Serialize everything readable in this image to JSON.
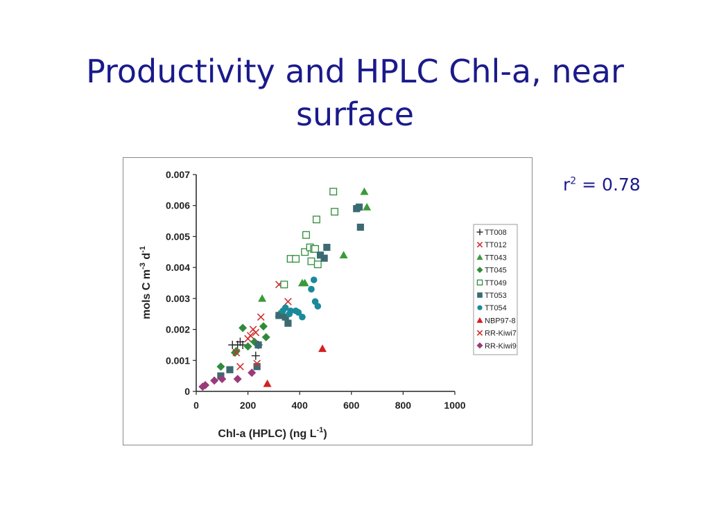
{
  "slide": {
    "title": "Productivity and HPLC Chl-a, near surface",
    "r2_prefix": "r",
    "r2_sup": "2",
    "r2_rest": " = 0.78"
  },
  "chart_data": {
    "type": "scatter",
    "title": "",
    "xlabel": "Chl-a (HPLC) (ng L",
    "xlabel_sup": "-1",
    "xlabel_end": ")",
    "ylabel": "mols C m",
    "ylabel_sup1": "-3",
    "ylabel_mid": " d",
    "ylabel_sup2": "-1",
    "xlim": [
      0,
      1000
    ],
    "ylim": [
      0,
      0.007
    ],
    "xticks": [
      0,
      200,
      400,
      600,
      800,
      1000
    ],
    "xtick_labels": [
      "0",
      "200",
      "400",
      "600",
      "800",
      "1000"
    ],
    "yticks": [
      0,
      0.001,
      0.002,
      0.003,
      0.004,
      0.005,
      0.006,
      0.007
    ],
    "ytick_labels": [
      "0",
      "0.001",
      "0.002",
      "0.003",
      "0.004",
      "0.005",
      "0.006",
      "0.007"
    ],
    "grid": false,
    "legend_position": "right",
    "series": [
      {
        "name": "TT008",
        "marker": "plus",
        "color": "#222222",
        "x": [
          140,
          160,
          170,
          180,
          230,
          240
        ],
        "y": [
          0.0015,
          0.0015,
          0.0016,
          0.0015,
          0.00115,
          0.0015
        ]
      },
      {
        "name": "TT012",
        "marker": "x",
        "color": "#d03030",
        "x": [
          200,
          210,
          220,
          230,
          250,
          320,
          355
        ],
        "y": [
          0.0017,
          0.0018,
          0.002,
          0.0019,
          0.0024,
          0.00345,
          0.0029
        ]
      },
      {
        "name": "TT043",
        "marker": "triangle",
        "color": "#3a9a3a",
        "x": [
          255,
          320,
          410,
          420,
          570,
          650,
          660
        ],
        "y": [
          0.003,
          0.0025,
          0.0035,
          0.0035,
          0.0044,
          0.00645,
          0.00595
        ]
      },
      {
        "name": "TT045",
        "marker": "diamond",
        "color": "#2e8b3a",
        "x": [
          95,
          150,
          155,
          180,
          200,
          225,
          260,
          270
        ],
        "y": [
          0.0008,
          0.00125,
          0.0013,
          0.00205,
          0.00145,
          0.0016,
          0.0021,
          0.00175
        ]
      },
      {
        "name": "TT049",
        "marker": "square-open",
        "color": "#2e8b3a",
        "x": [
          340,
          365,
          385,
          420,
          425,
          440,
          445,
          455,
          460,
          465,
          470,
          530,
          535
        ],
        "y": [
          0.00345,
          0.00428,
          0.00428,
          0.0045,
          0.00505,
          0.00465,
          0.0042,
          0.0046,
          0.0046,
          0.00555,
          0.0041,
          0.00645,
          0.0058
        ]
      },
      {
        "name": "TT053",
        "marker": "square",
        "color": "#3c6a72",
        "x": [
          95,
          130,
          235,
          240,
          320,
          345,
          355,
          480,
          495,
          505,
          620,
          630,
          635
        ],
        "y": [
          0.0005,
          0.0007,
          0.0008,
          0.0015,
          0.00245,
          0.0024,
          0.0022,
          0.0044,
          0.0043,
          0.00465,
          0.0059,
          0.00595,
          0.0053
        ]
      },
      {
        "name": "TT054",
        "marker": "circle",
        "color": "#1a8a9a",
        "x": [
          335,
          345,
          360,
          365,
          385,
          395,
          410,
          445,
          455,
          460,
          470
        ],
        "y": [
          0.0026,
          0.0027,
          0.0025,
          0.0026,
          0.0026,
          0.00255,
          0.0024,
          0.0033,
          0.0036,
          0.0029,
          0.00275
        ]
      },
      {
        "name": "NBP97-8",
        "marker": "triangle",
        "color": "#d42020",
        "x": [
          275,
          488
        ],
        "y": [
          0.00025,
          0.00138
        ]
      },
      {
        "name": "RR-Kiwi7",
        "marker": "x",
        "color": "#d03030",
        "x": [
          155,
          170,
          235
        ],
        "y": [
          0.00125,
          0.0008,
          0.0009
        ]
      },
      {
        "name": "RR-Kiwi9",
        "marker": "diamond",
        "color": "#9a3a7a",
        "x": [
          25,
          35,
          70,
          100,
          160,
          215
        ],
        "y": [
          0.00015,
          0.0002,
          0.00035,
          0.0004,
          0.0004,
          0.0006
        ]
      }
    ]
  }
}
